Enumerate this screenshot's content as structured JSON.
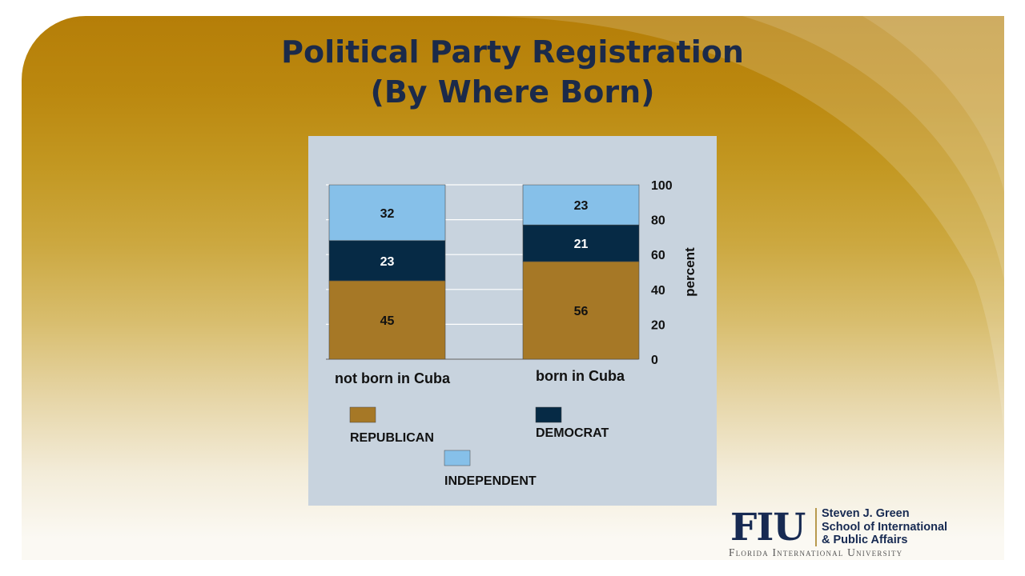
{
  "slide": {
    "title_line1": "Political Party Registration",
    "title_line2": "(By Where Born)"
  },
  "chart_data": {
    "type": "bar",
    "stacked": true,
    "categories": [
      "not born in Cuba",
      "born in Cuba"
    ],
    "series": [
      {
        "name": "REPUBLICAN",
        "values": [
          45,
          56
        ],
        "color": "#a67826",
        "label_color": "#111111"
      },
      {
        "name": "DEMOCRAT",
        "values": [
          23,
          21
        ],
        "color": "#062a45",
        "label_color": "#ffffff"
      },
      {
        "name": "INDEPENDENT",
        "values": [
          32,
          23
        ],
        "color": "#86c0e9",
        "label_color": "#111111"
      }
    ],
    "ylabel": "percent",
    "yaxis_position": "right",
    "ylim": [
      0,
      100
    ],
    "yticks": [
      0,
      20,
      40,
      60,
      80,
      100
    ],
    "grid": true,
    "legend_position": "bottom",
    "background": "#c8d3de"
  },
  "logo": {
    "mark": "FIU",
    "school_line1": "Steven J. Green",
    "school_line2": "School of International",
    "school_line3": "& Public Affairs",
    "university": "Florida International University"
  }
}
